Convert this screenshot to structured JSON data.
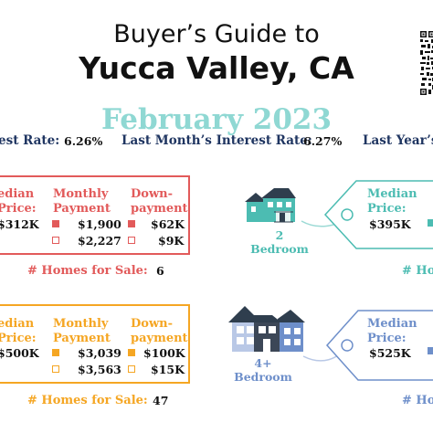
{
  "header": {
    "line1": "Buyer’s Guide to",
    "line2": "Yucca Valley, CA",
    "line3": "February 2023"
  },
  "rates": {
    "current_label": "est Rate:",
    "current_value": "6.26%",
    "last_month_label": "Last Month’s Interest Rate:",
    "last_month_value": "6.27%",
    "last_year_label": "Last Year’s I"
  },
  "tier_low": {
    "median_h1": "edian",
    "median_h2": "Price:",
    "median_value": "312K",
    "monthly_h1": "Monthly",
    "monthly_h2": "Payment",
    "monthly_value_1": "$1,900",
    "monthly_value_2": "$2,227",
    "down_h1": "Down-",
    "down_h2": "payment",
    "down_value_1": "$62K",
    "down_value_2": "$9K",
    "homes_label": "# Homes for Sale:",
    "homes_value": "6",
    "tag_bedrooms_1": "2",
    "tag_bedrooms_2": "Bedroom",
    "tag_median_h1": "Median",
    "tag_median_h2": "Price:",
    "tag_median_value": "$395K",
    "tag_homes_label": "# Ho"
  },
  "tier_high": {
    "median_h1": "edian",
    "median_h2": "Price:",
    "median_value": "500K",
    "monthly_h1": "Monthly",
    "monthly_h2": "Payment",
    "monthly_value_1": "$3,039",
    "monthly_value_2": "$3,563",
    "down_h1": "Down-",
    "down_h2": "payment",
    "down_value_1": "$100K",
    "down_value_2": "$15K",
    "homes_label": "# Homes for Sale:",
    "homes_value": "47",
    "tag_bedrooms_1": "4+",
    "tag_bedrooms_2": "Bedroom",
    "tag_median_h1": "Median",
    "tag_median_h2": "Price:",
    "tag_median_value": "$525K",
    "tag_homes_label": "# Ho"
  },
  "colors": {
    "red": "#e25a5a",
    "orange": "#f5a623",
    "teal": "#4cbcb2",
    "blue": "#6e8fca",
    "navy": "#1f3561"
  },
  "icons": [
    "qr-code-icon",
    "house-2-bedroom-icon",
    "house-4-bedroom-icon",
    "price-tag-icon"
  ]
}
